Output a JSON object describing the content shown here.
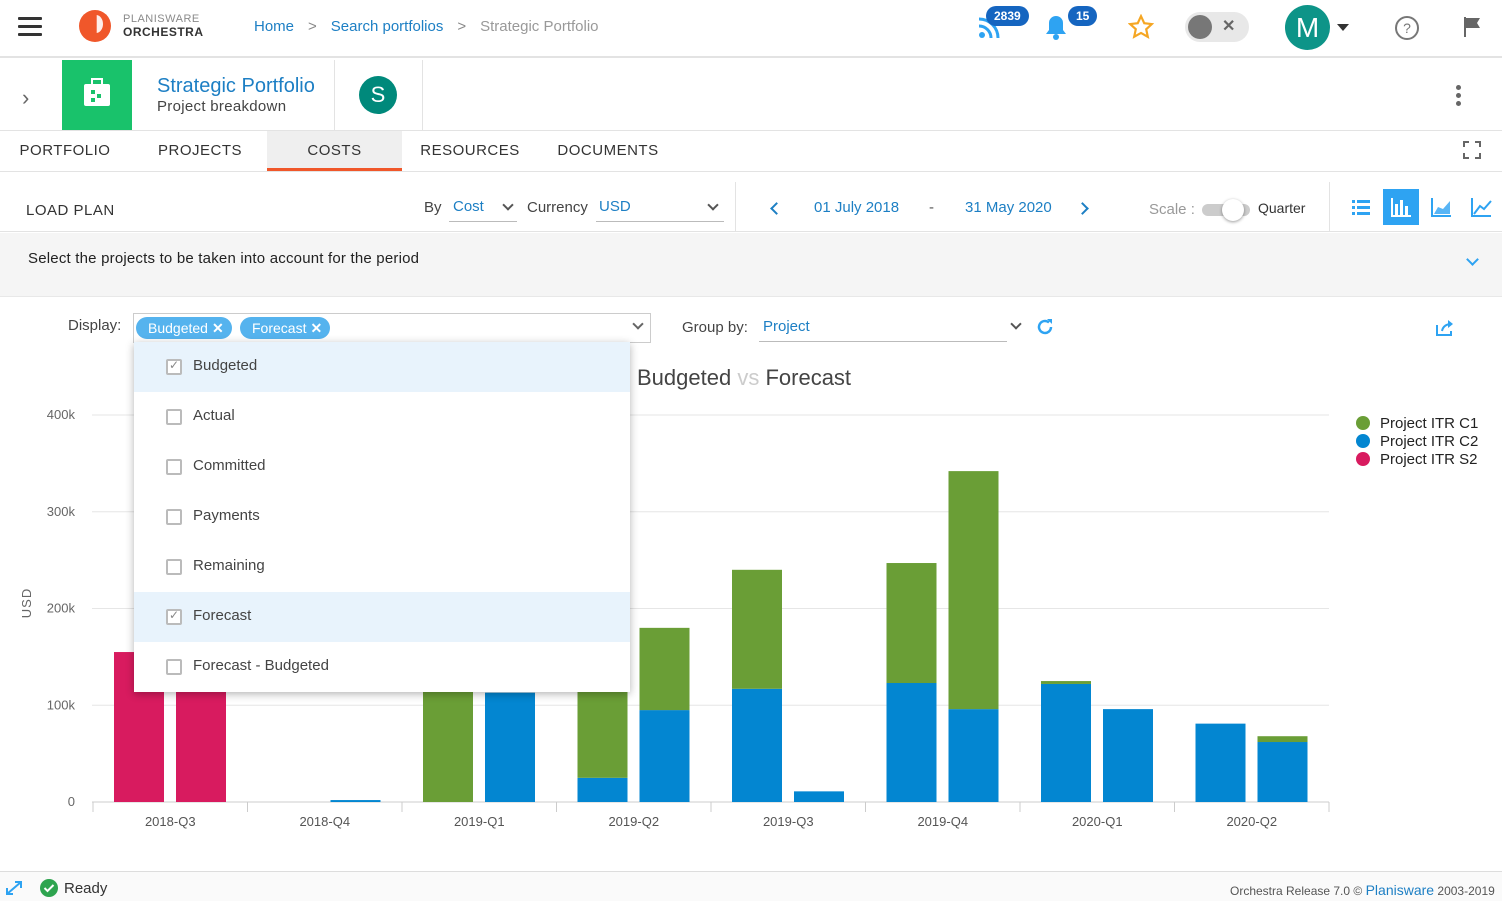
{
  "header": {
    "logo_top": "PLANISWARE",
    "logo_bottom": "ORCHESTRA",
    "breadcrumbs": [
      "Home",
      "Search portfolios",
      "Strategic Portfolio"
    ],
    "feed_count": "2839",
    "notif_count": "15",
    "user_initial": "M"
  },
  "project": {
    "title": "Strategic Portfolio",
    "subtitle": "Project breakdown",
    "owner_initial": "S"
  },
  "tabs": [
    {
      "label": "PORTFOLIO"
    },
    {
      "label": "PROJECTS"
    },
    {
      "label": "COSTS",
      "active": true
    },
    {
      "label": "RESOURCES"
    },
    {
      "label": "DOCUMENTS"
    }
  ],
  "toolbar": {
    "title": "LOAD PLAN",
    "by_label": "By",
    "by_value": "Cost",
    "currency_label": "Currency",
    "currency_value": "USD",
    "date_start": "01 July 2018",
    "date_sep": "-",
    "date_end": "31 May 2020",
    "scale_label": "Scale :",
    "scale_value": "Quarter"
  },
  "select_bar": {
    "text": "Select the projects to be taken into account for the period"
  },
  "filters": {
    "display_label": "Display:",
    "chips": [
      "Budgeted",
      "Forecast"
    ],
    "groupby_label": "Group by:",
    "groupby_value": "Project"
  },
  "dropdown": {
    "options": [
      {
        "label": "Budgeted",
        "checked": true
      },
      {
        "label": "Actual",
        "checked": false
      },
      {
        "label": "Committed",
        "checked": false
      },
      {
        "label": "Payments",
        "checked": false
      },
      {
        "label": "Remaining",
        "checked": false
      },
      {
        "label": "Forecast",
        "checked": true
      },
      {
        "label": "Forecast - Budgeted",
        "checked": false
      }
    ]
  },
  "chart_title": {
    "a": "Budgeted",
    "vs": "vs",
    "b": "Forecast"
  },
  "colors": {
    "c1": "#6a9e36",
    "c2": "#0386d1",
    "s2": "#d81b5f",
    "accent": "#2ea3f2",
    "tab_underline": "#f0572a"
  },
  "chart_data": {
    "type": "bar",
    "stacked": true,
    "ylabel": "USD",
    "ylim": [
      0,
      400000
    ],
    "yticks": [
      {
        "v": 0,
        "label": "0"
      },
      {
        "v": 100000,
        "label": "100k"
      },
      {
        "v": 200000,
        "label": "200k"
      },
      {
        "v": 300000,
        "label": "300k"
      },
      {
        "v": 400000,
        "label": "400k"
      }
    ],
    "categories": [
      "2018-Q3",
      "2018-Q4",
      "2019-Q1",
      "2019-Q2",
      "2019-Q3",
      "2019-Q4",
      "2020-Q1",
      "2020-Q2"
    ],
    "bars_per_category": [
      "Budgeted",
      "Forecast"
    ],
    "series": [
      {
        "name": "Project ITR C1",
        "color": "#6a9e36",
        "budgeted": [
          0,
          0,
          230000,
          205000,
          123000,
          124000,
          3000,
          0
        ],
        "forecast": [
          0,
          0,
          0,
          85000,
          0,
          246000,
          0,
          6000
        ]
      },
      {
        "name": "Project ITR C2",
        "color": "#0386d1",
        "budgeted": [
          0,
          0,
          0,
          25000,
          117000,
          123000,
          122000,
          81000
        ],
        "forecast": [
          0,
          2000,
          113000,
          95000,
          11000,
          96000,
          96000,
          62000
        ]
      },
      {
        "name": "Project ITR S2",
        "color": "#d81b5f",
        "budgeted": [
          155000,
          0,
          0,
          0,
          0,
          0,
          0,
          0
        ],
        "forecast": [
          155000,
          0,
          0,
          0,
          0,
          0,
          0,
          0
        ]
      }
    ],
    "extra_bars": [
      {
        "category": "2019-Q3",
        "slot": "forecast",
        "note": ""
      }
    ],
    "legend_position": "right"
  },
  "status": {
    "text": "Ready",
    "release": "Orchestra Release 7.0 ©",
    "brand": "Planisware",
    "years": "2003-2019"
  }
}
